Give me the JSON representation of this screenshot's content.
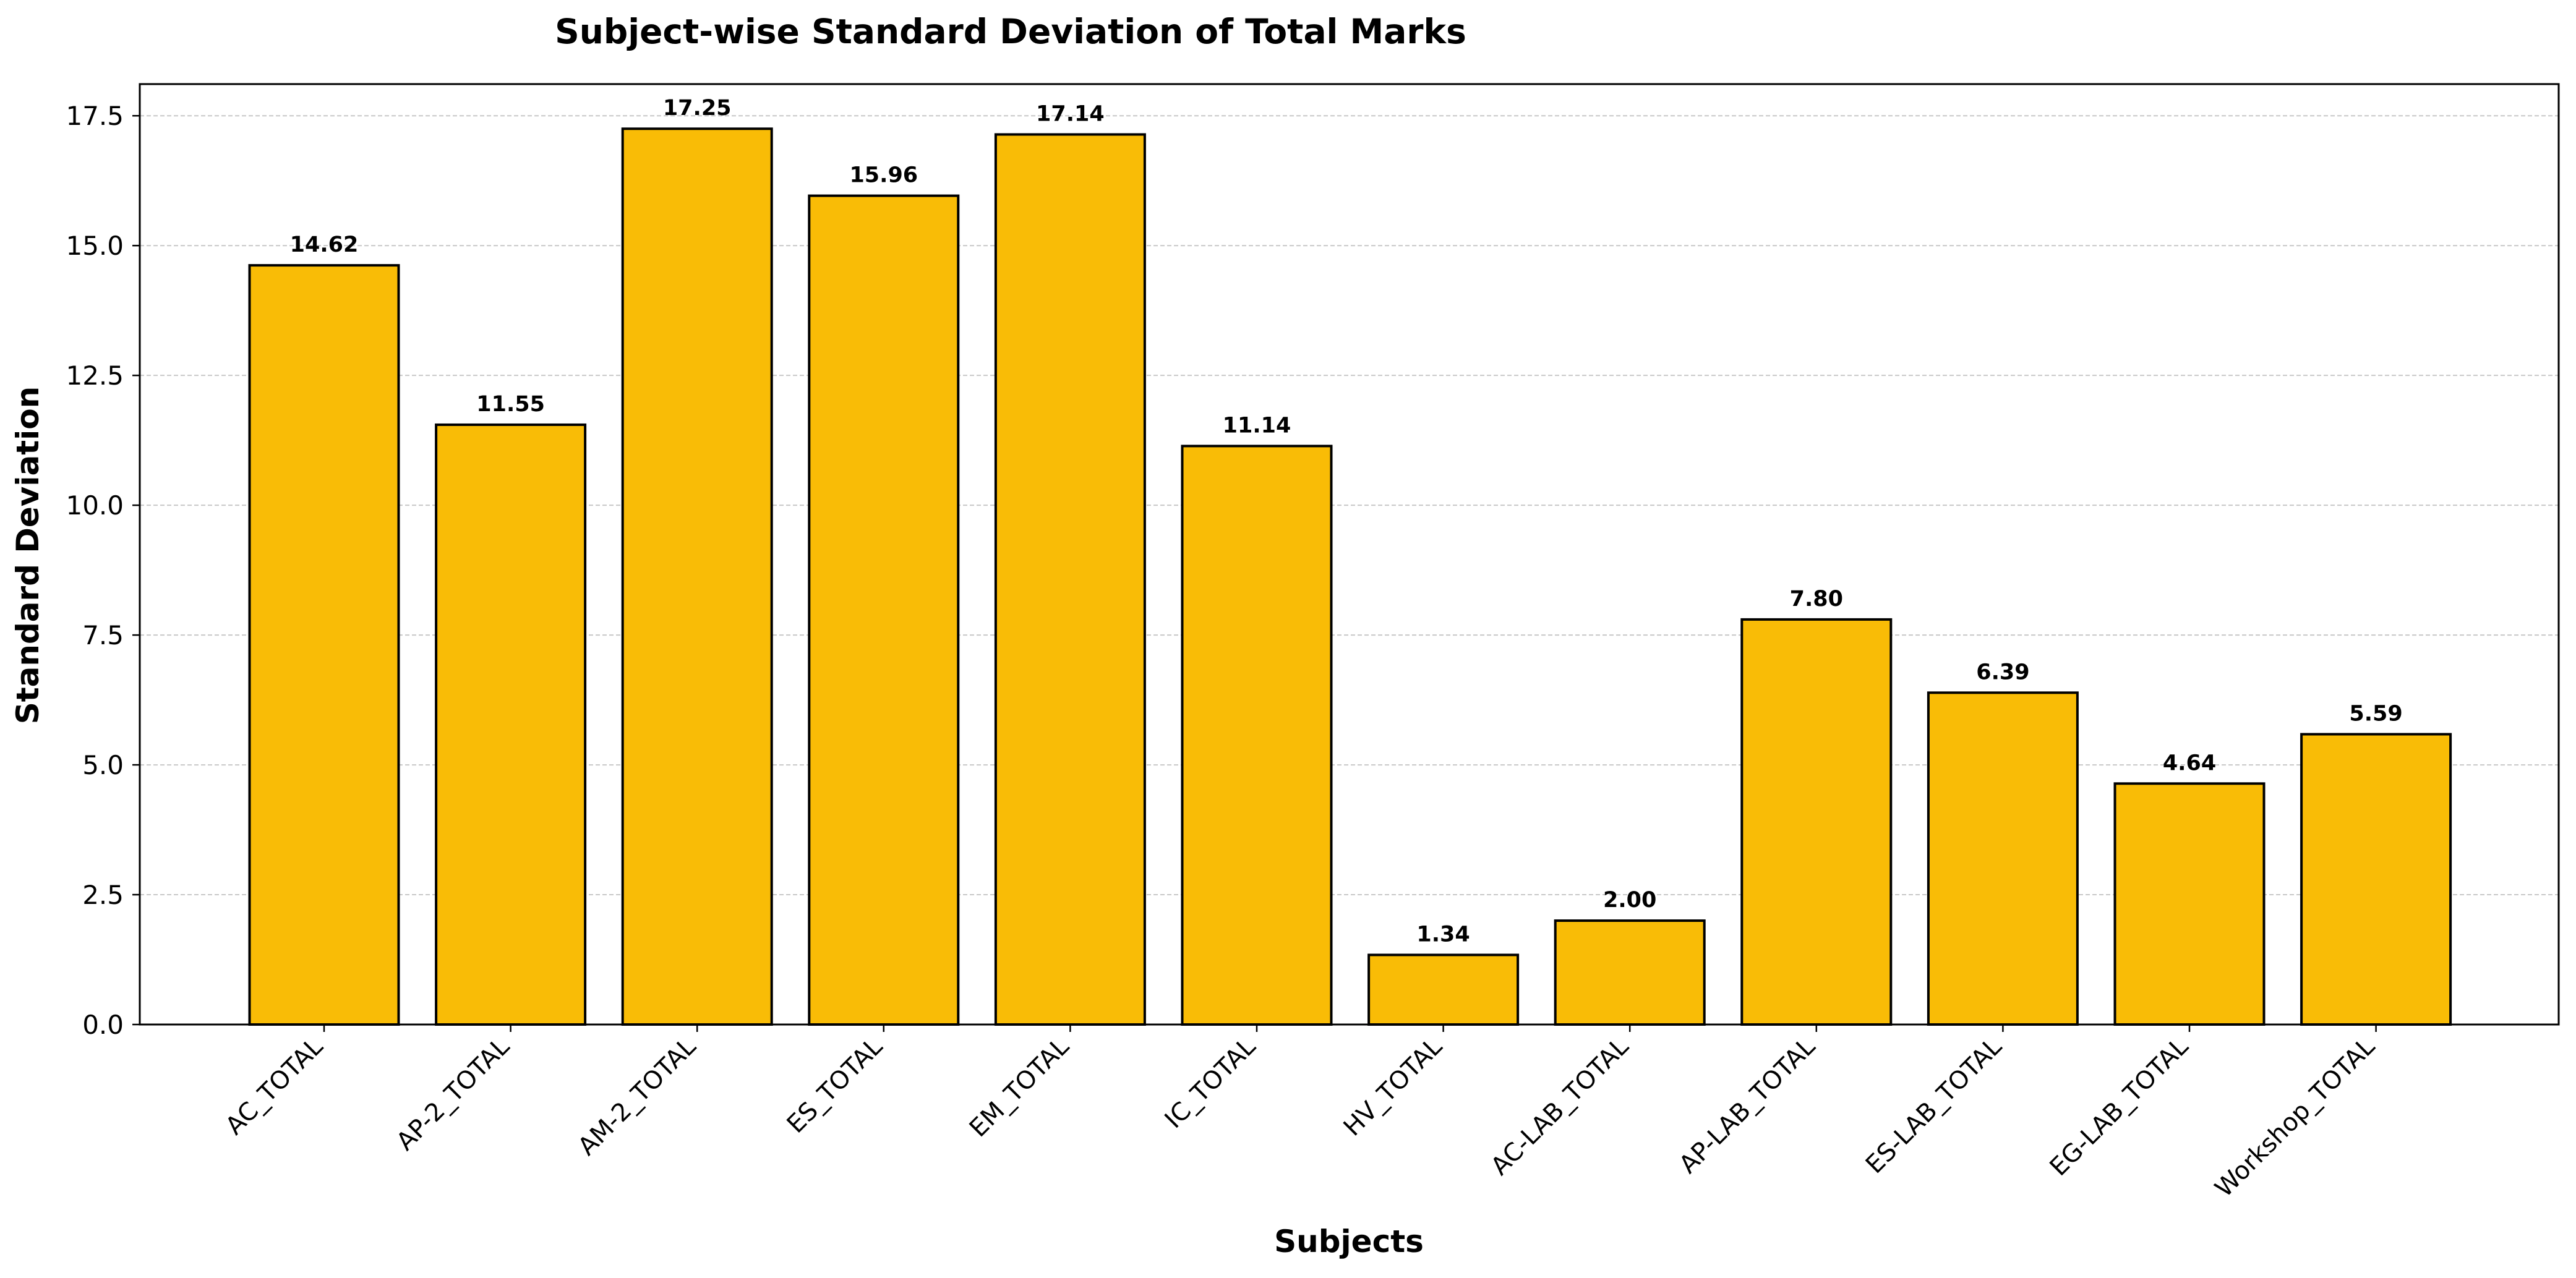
{
  "chart_data": {
    "type": "bar",
    "title": "Subject-wise Standard Deviation of Total Marks",
    "xlabel": "Subjects",
    "ylabel": "Standard Deviation",
    "categories": [
      "AC_TOTAL",
      "AP-2_TOTAL",
      "AM-2_TOTAL",
      "ES_TOTAL",
      "EM_TOTAL",
      "IC_TOTAL",
      "HV_TOTAL",
      "AC-LAB_TOTAL",
      "AP-LAB_TOTAL",
      "ES-LAB_TOTAL",
      "EG-LAB_TOTAL",
      "Workshop_TOTAL"
    ],
    "values": [
      14.62,
      11.55,
      17.25,
      15.96,
      17.14,
      11.14,
      1.34,
      2.0,
      7.8,
      6.39,
      4.64,
      5.59
    ],
    "value_labels": [
      "14.62",
      "11.55",
      "17.25",
      "15.96",
      "17.14",
      "11.14",
      "1.34",
      "2.00",
      "7.80",
      "6.39",
      "4.64",
      "5.59"
    ],
    "ylim": [
      0,
      18.11
    ],
    "yticks": [
      0.0,
      2.5,
      5.0,
      7.5,
      10.0,
      12.5,
      15.0,
      17.5
    ],
    "ytick_labels": [
      "0.0",
      "2.5",
      "5.0",
      "7.5",
      "10.0",
      "12.5",
      "15.0",
      "17.5"
    ],
    "grid": "y-dashed",
    "bar_color": "#F9BC06",
    "bar_edge_color": "#000000"
  }
}
